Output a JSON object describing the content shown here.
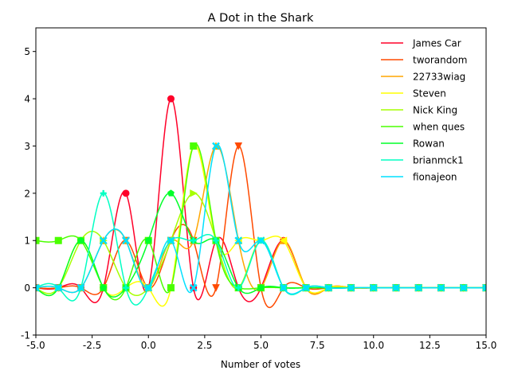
{
  "chart_data": {
    "type": "line",
    "title": "A Dot in the Shark",
    "xlabel": "Number of votes",
    "ylabel": "",
    "xlim": [
      -5,
      15
    ],
    "ylim": [
      -1,
      5.5
    ],
    "x_ticks": [
      "-5.0",
      "-2.5",
      "0.0",
      "2.5",
      "5.0",
      "7.5",
      "10.0",
      "12.5",
      "15.0"
    ],
    "y_ticks": [
      "-1",
      "0",
      "1",
      "2",
      "3",
      "4",
      "5"
    ],
    "legend_position": "top-right",
    "grid": false,
    "x": [
      -5,
      -4,
      -3,
      -2,
      -1,
      0,
      1,
      2,
      3,
      4,
      5,
      6,
      7,
      8,
      9,
      10,
      11,
      12,
      13,
      14,
      15
    ],
    "series": [
      {
        "name": "James Car",
        "color": "#ff0029",
        "marker": "circle",
        "values": [
          0,
          0,
          0,
          0,
          2,
          0,
          4,
          0,
          1,
          0,
          0,
          1,
          0,
          0,
          0,
          0,
          0,
          0,
          0,
          0,
          0
        ]
      },
      {
        "name": "tworandom",
        "color": "#ff4a00",
        "marker": "triangle-down",
        "values": [
          0,
          0,
          0,
          0,
          1,
          0,
          1,
          1,
          0,
          3,
          0,
          0,
          0,
          0,
          0,
          0,
          0,
          0,
          0,
          0,
          0
        ]
      },
      {
        "name": "22733wiag",
        "color": "#ffa600",
        "marker": "triangle-up",
        "values": [
          0,
          0,
          0,
          1,
          1,
          0,
          1,
          1,
          3,
          1,
          0,
          1,
          0,
          0,
          0,
          0,
          0,
          0,
          0,
          0,
          0
        ]
      },
      {
        "name": "Steven",
        "color": "#ffff00",
        "marker": "triangle-left",
        "values": [
          0,
          0,
          1,
          0,
          0,
          0,
          0,
          3,
          1,
          1,
          1,
          1,
          0,
          0,
          0,
          0,
          0,
          0,
          0,
          0,
          0
        ]
      },
      {
        "name": "Nick King",
        "color": "#a6ff00",
        "marker": "triangle-right",
        "values": [
          0,
          0,
          1,
          1,
          0,
          0,
          1,
          2,
          1,
          0,
          1,
          0,
          0,
          0,
          0,
          0,
          0,
          0,
          0,
          0,
          0
        ]
      },
      {
        "name": "when ques",
        "color": "#4aff00",
        "marker": "square",
        "values": [
          1,
          1,
          1,
          0,
          0,
          1,
          0,
          3,
          1,
          0,
          0,
          0,
          0,
          0,
          0,
          0,
          0,
          0,
          0,
          0,
          0
        ]
      },
      {
        "name": "Rowan",
        "color": "#00ff29",
        "marker": "pentagon",
        "values": [
          0,
          0,
          1,
          0,
          0,
          1,
          2,
          1,
          1,
          0,
          0,
          0,
          0,
          0,
          0,
          0,
          0,
          0,
          0,
          0,
          0
        ]
      },
      {
        "name": "brianmck1",
        "color": "#00ffc3",
        "marker": "plus",
        "values": [
          0,
          0,
          0,
          2,
          0,
          0,
          1,
          1,
          1,
          0,
          1,
          0,
          0,
          0,
          0,
          0,
          0,
          0,
          0,
          0,
          0
        ]
      },
      {
        "name": "fionajeon",
        "color": "#00e0ff",
        "marker": "x",
        "values": [
          0,
          0,
          0,
          1,
          1,
          0,
          1,
          0,
          3,
          1,
          1,
          0,
          0,
          0,
          0,
          0,
          0,
          0,
          0,
          0,
          0
        ]
      }
    ]
  }
}
